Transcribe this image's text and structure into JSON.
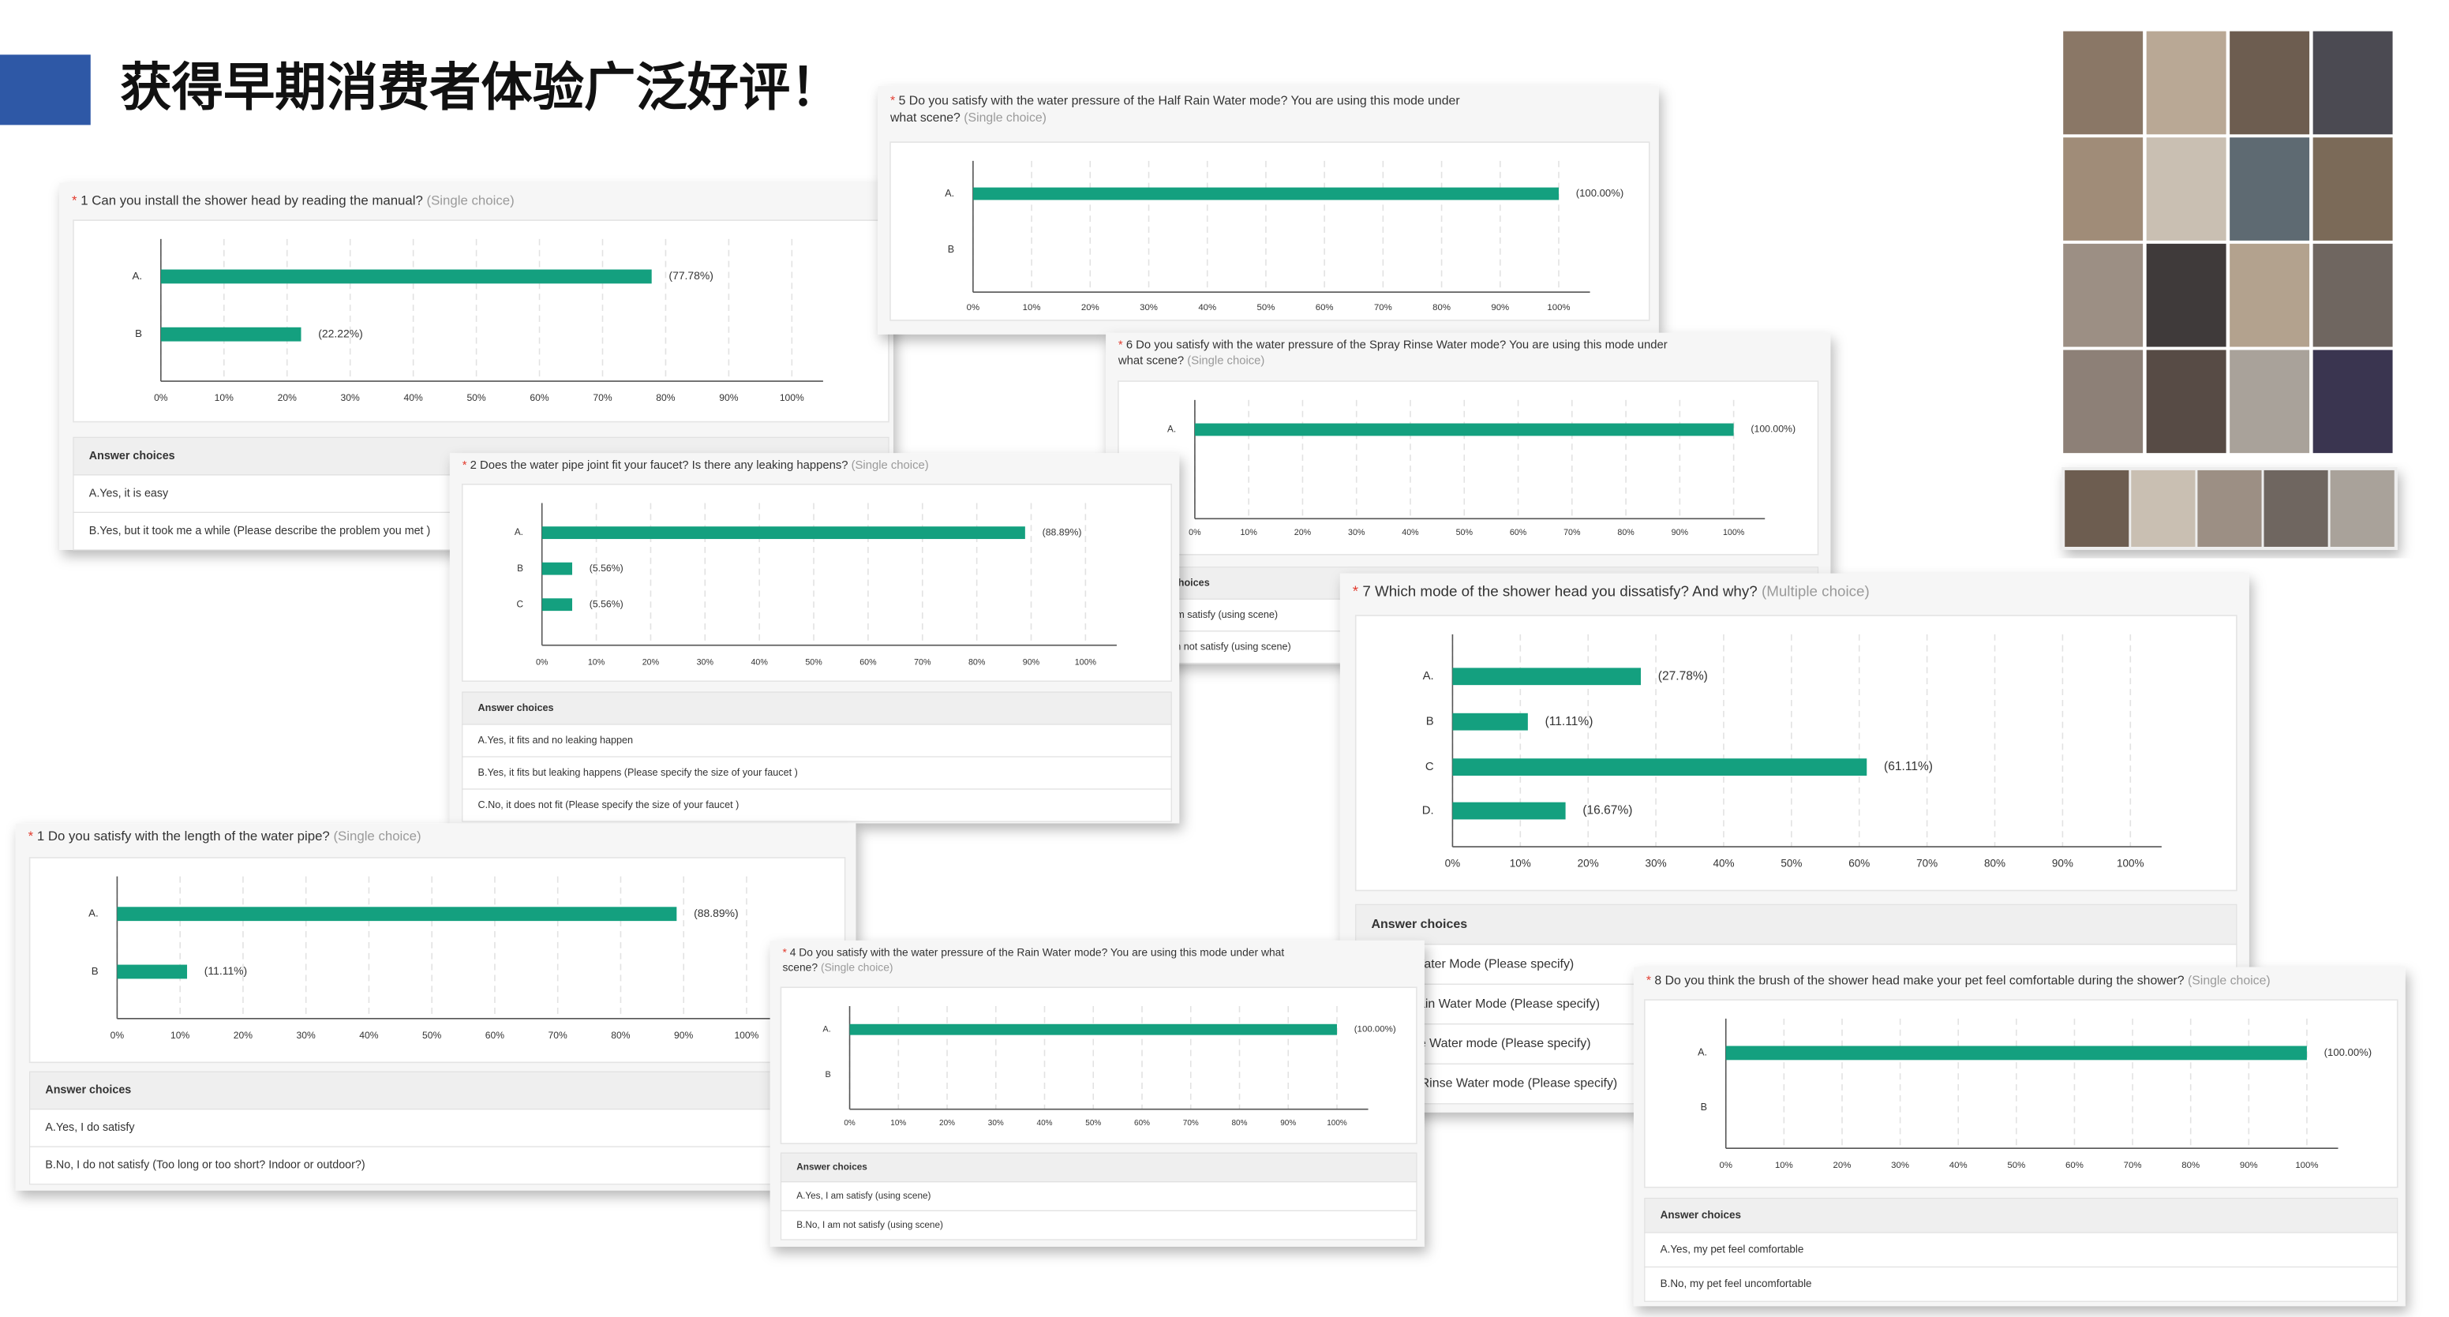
{
  "title": "获得早期消费者体验广泛好评！",
  "chart_data": [
    {
      "type": "bar",
      "marker": "*",
      "question": [
        "1 Can you install the shower head by reading the manual?"
      ],
      "choice_type": "(Single choice)",
      "categories": [
        "A.",
        "B"
      ],
      "values": [
        77.78,
        22.22
      ],
      "value_labels": [
        "(77.78%)",
        "(22.22%)"
      ],
      "color": "#14a07f",
      "xlim": [
        0,
        100
      ],
      "xticks": [
        {
          "value": 0,
          "label": "0%"
        },
        {
          "value": 10,
          "label": "10%"
        },
        {
          "value": 20,
          "label": "20%"
        },
        {
          "value": 30,
          "label": "30%"
        },
        {
          "value": 40,
          "label": "40%"
        },
        {
          "value": 50,
          "label": "50%"
        },
        {
          "value": 60,
          "label": "60%"
        },
        {
          "value": 70,
          "label": "70%"
        },
        {
          "value": 80,
          "label": "80%"
        },
        {
          "value": 90,
          "label": "90%"
        },
        {
          "value": 100,
          "label": "100%"
        }
      ],
      "grid": true,
      "table_header": "Answer choices",
      "choices": [
        "A.Yes, it is easy",
        "B.Yes, but it took me a while (Please describe the problem you met )"
      ]
    },
    {
      "type": "bar",
      "marker": "*",
      "question": [
        "5 Do you satisfy with the water pressure of the Half Rain Water mode? You are using this mode under",
        "what scene?"
      ],
      "choice_type": "(Single choice)",
      "categories": [
        "A.",
        "B"
      ],
      "values": [
        100,
        0
      ],
      "value_labels": [
        "(100.00%)",
        null
      ],
      "color": "#14a07f",
      "xlim": [
        0,
        100
      ],
      "xticks": [
        {
          "value": 0,
          "label": "0%"
        },
        {
          "value": 10,
          "label": "10%"
        },
        {
          "value": 20,
          "label": "20%"
        },
        {
          "value": 30,
          "label": "30%"
        },
        {
          "value": 40,
          "label": "40%"
        },
        {
          "value": 50,
          "label": "50%"
        },
        {
          "value": 60,
          "label": "60%"
        },
        {
          "value": 70,
          "label": "70%"
        },
        {
          "value": 80,
          "label": "80%"
        },
        {
          "value": 90,
          "label": "90%"
        },
        {
          "value": 100,
          "label": "100%"
        }
      ],
      "grid": true
    },
    {
      "type": "bar",
      "marker": "*",
      "question": [
        "6 Do you satisfy with the water pressure of the Spray Rinse Water mode? You are using this mode under",
        "what scene?"
      ],
      "choice_type": "(Single choice)",
      "categories": [
        "A.",
        "B"
      ],
      "values": [
        100,
        0
      ],
      "value_labels": [
        "(100.00%)",
        null
      ],
      "color": "#14a07f",
      "xlim": [
        0,
        100
      ],
      "xticks": [
        {
          "value": 0,
          "label": "0%"
        },
        {
          "value": 10,
          "label": "10%"
        },
        {
          "value": 20,
          "label": "20%"
        },
        {
          "value": 30,
          "label": "30%"
        },
        {
          "value": 40,
          "label": "40%"
        },
        {
          "value": 50,
          "label": "50%"
        },
        {
          "value": 60,
          "label": "60%"
        },
        {
          "value": 70,
          "label": "70%"
        },
        {
          "value": 80,
          "label": "80%"
        },
        {
          "value": 90,
          "label": "90%"
        },
        {
          "value": 100,
          "label": "100%"
        }
      ],
      "grid": true,
      "table_header": "Answer choices",
      "choices": [
        "A.Yes, I am satisfy (using scene)",
        "B.No, I am not satisfy (using scene)"
      ]
    },
    {
      "type": "bar",
      "marker": "*",
      "question": [
        "2 Does the water pipe joint fit your faucet? Is there any leaking happens?"
      ],
      "choice_type": "(Single choice)",
      "categories": [
        "A.",
        "B",
        "C"
      ],
      "values": [
        88.89,
        5.56,
        5.56
      ],
      "value_labels": [
        "(88.89%)",
        "(5.56%)",
        "(5.56%)"
      ],
      "color": "#14a07f",
      "xlim": [
        0,
        100
      ],
      "xticks": [
        {
          "value": 0,
          "label": "0%"
        },
        {
          "value": 10,
          "label": "10%"
        },
        {
          "value": 20,
          "label": "20%"
        },
        {
          "value": 30,
          "label": "30%"
        },
        {
          "value": 40,
          "label": "40%"
        },
        {
          "value": 50,
          "label": "50%"
        },
        {
          "value": 60,
          "label": "60%"
        },
        {
          "value": 70,
          "label": "70%"
        },
        {
          "value": 80,
          "label": "80%"
        },
        {
          "value": 90,
          "label": "90%"
        },
        {
          "value": 100,
          "label": "100%"
        }
      ],
      "grid": true,
      "table_header": "Answer choices",
      "choices": [
        "A.Yes, it fits and no leaking happen",
        "B.Yes, it fits but leaking happens (Please specify the size of your faucet )",
        "C.No, it does not fit (Please specify the size of your faucet )"
      ]
    },
    {
      "type": "bar",
      "marker": "*",
      "question": [
        "7 Which mode of the shower head you dissatisfy? And why?"
      ],
      "choice_type": "(Multiple choice)",
      "categories": [
        "A.",
        "B",
        "C",
        "D."
      ],
      "values": [
        27.78,
        11.11,
        61.11,
        16.67
      ],
      "value_labels": [
        "(27.78%)",
        "(11.11%)",
        "(61.11%)",
        "(16.67%)"
      ],
      "color": "#14a07f",
      "xlim": [
        0,
        100
      ],
      "xticks": [
        {
          "value": 0,
          "label": "0%"
        },
        {
          "value": 10,
          "label": "10%"
        },
        {
          "value": 20,
          "label": "20%"
        },
        {
          "value": 30,
          "label": "30%"
        },
        {
          "value": 40,
          "label": "40%"
        },
        {
          "value": 50,
          "label": "50%"
        },
        {
          "value": 60,
          "label": "60%"
        },
        {
          "value": 70,
          "label": "70%"
        },
        {
          "value": 80,
          "label": "80%"
        },
        {
          "value": 90,
          "label": "90%"
        },
        {
          "value": 100,
          "label": "100%"
        }
      ],
      "grid": true,
      "table_header": "Answer choices",
      "choices": [
        "A.Rain Water Mode (Please specify)",
        "B.Half Rain Water Mode (Please specify)",
        "C.Decline Water mode (Please specify)",
        "D.Spray Rinse Water mode (Please specify)"
      ]
    },
    {
      "type": "bar",
      "marker": "*",
      "question": [
        "1 Do you satisfy with the length of the water pipe?"
      ],
      "choice_type": "(Single choice)",
      "categories": [
        "A.",
        "B"
      ],
      "values": [
        88.89,
        11.11
      ],
      "value_labels": [
        "(88.89%)",
        "(11.11%)"
      ],
      "color": "#14a07f",
      "xlim": [
        0,
        100
      ],
      "xticks": [
        {
          "value": 0,
          "label": "0%"
        },
        {
          "value": 10,
          "label": "10%"
        },
        {
          "value": 20,
          "label": "20%"
        },
        {
          "value": 30,
          "label": "30%"
        },
        {
          "value": 40,
          "label": "40%"
        },
        {
          "value": 50,
          "label": "50%"
        },
        {
          "value": 60,
          "label": "60%"
        },
        {
          "value": 70,
          "label": "70%"
        },
        {
          "value": 80,
          "label": "80%"
        },
        {
          "value": 90,
          "label": "90%"
        },
        {
          "value": 100,
          "label": "100%"
        }
      ],
      "grid": true,
      "table_header": "Answer choices",
      "choices": [
        "A.Yes, I do satisfy",
        "B.No, I do not satisfy (Too long or too short? Indoor or outdoor?)"
      ]
    },
    {
      "type": "bar",
      "marker": "*",
      "question": [
        "4 Do you satisfy with the water pressure of the Rain Water mode? You are using this mode under what",
        "scene?"
      ],
      "choice_type": "(Single choice)",
      "categories": [
        "A.",
        "B"
      ],
      "values": [
        100,
        0
      ],
      "value_labels": [
        "(100.00%)",
        null
      ],
      "color": "#14a07f",
      "xlim": [
        0,
        100
      ],
      "xticks": [
        {
          "value": 0,
          "label": "0%"
        },
        {
          "value": 10,
          "label": "10%"
        },
        {
          "value": 20,
          "label": "20%"
        },
        {
          "value": 30,
          "label": "30%"
        },
        {
          "value": 40,
          "label": "40%"
        },
        {
          "value": 50,
          "label": "50%"
        },
        {
          "value": 60,
          "label": "60%"
        },
        {
          "value": 70,
          "label": "70%"
        },
        {
          "value": 80,
          "label": "80%"
        },
        {
          "value": 90,
          "label": "90%"
        },
        {
          "value": 100,
          "label": "100%"
        }
      ],
      "grid": true,
      "table_header": "Answer choices",
      "choices": [
        "A.Yes, I am satisfy (using scene)",
        "B.No, I am not satisfy (using scene)"
      ]
    },
    {
      "type": "bar",
      "marker": "*",
      "question": [
        "8 Do you think the brush of the shower head make your pet feel comfortable during the shower?"
      ],
      "choice_type": "(Single choice)",
      "categories": [
        "A.",
        "B"
      ],
      "values": [
        100,
        0
      ],
      "value_labels": [
        "(100.00%)",
        null
      ],
      "color": "#14a07f",
      "xlim": [
        0,
        100
      ],
      "xticks": [
        {
          "value": 0,
          "label": "0%"
        },
        {
          "value": 10,
          "label": "10%"
        },
        {
          "value": 20,
          "label": "20%"
        },
        {
          "value": 30,
          "label": "30%"
        },
        {
          "value": 40,
          "label": "40%"
        },
        {
          "value": 50,
          "label": "50%"
        },
        {
          "value": 60,
          "label": "60%"
        },
        {
          "value": 70,
          "label": "70%"
        },
        {
          "value": 80,
          "label": "80%"
        },
        {
          "value": 90,
          "label": "90%"
        },
        {
          "value": 100,
          "label": "100%"
        }
      ],
      "grid": true,
      "table_header": "Answer choices",
      "choices": [
        "A.Yes, my pet feel comfortable",
        "B.No, my pet feel uncomfortable"
      ]
    }
  ]
}
